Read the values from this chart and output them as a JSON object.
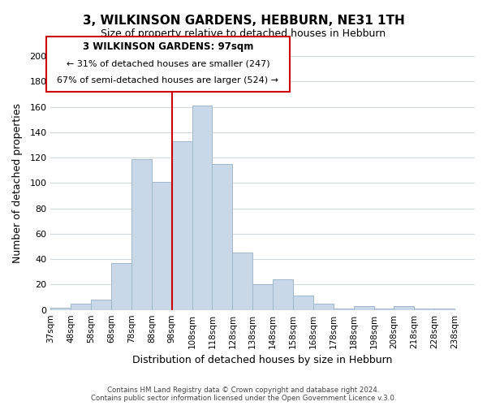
{
  "title": "3, WILKINSON GARDENS, HEBBURN, NE31 1TH",
  "subtitle": "Size of property relative to detached houses in Hebburn",
  "xlabel": "Distribution of detached houses by size in Hebburn",
  "ylabel": "Number of detached properties",
  "bar_labels": [
    "37sqm",
    "48sqm",
    "58sqm",
    "68sqm",
    "78sqm",
    "88sqm",
    "98sqm",
    "108sqm",
    "118sqm",
    "128sqm",
    "138sqm",
    "148sqm",
    "158sqm",
    "168sqm",
    "178sqm",
    "188sqm",
    "198sqm",
    "208sqm",
    "218sqm",
    "228sqm",
    "238sqm"
  ],
  "bar_values": [
    2,
    5,
    8,
    37,
    119,
    101,
    133,
    161,
    115,
    45,
    20,
    24,
    11,
    5,
    1,
    3,
    1,
    3,
    1,
    1,
    0
  ],
  "bar_color": "#c8d8e8",
  "bar_edgecolor": "#a0b8cc",
  "vline_x": 6,
  "vline_color": "#cc0000",
  "ylim": [
    0,
    200
  ],
  "yticks": [
    0,
    20,
    40,
    60,
    80,
    100,
    120,
    140,
    160,
    180,
    200
  ],
  "annotation_title": "3 WILKINSON GARDENS: 97sqm",
  "annotation_line1": "← 31% of detached houses are smaller (247)",
  "annotation_line2": "67% of semi-detached houses are larger (524) →",
  "annotation_box_color": "#ffffff",
  "annotation_box_edgecolor": "#cc0000",
  "footer1": "Contains HM Land Registry data © Crown copyright and database right 2024.",
  "footer2": "Contains public sector information licensed under the Open Government Licence v.3.0.",
  "background_color": "#ffffff",
  "grid_color": "#d0d8e0"
}
